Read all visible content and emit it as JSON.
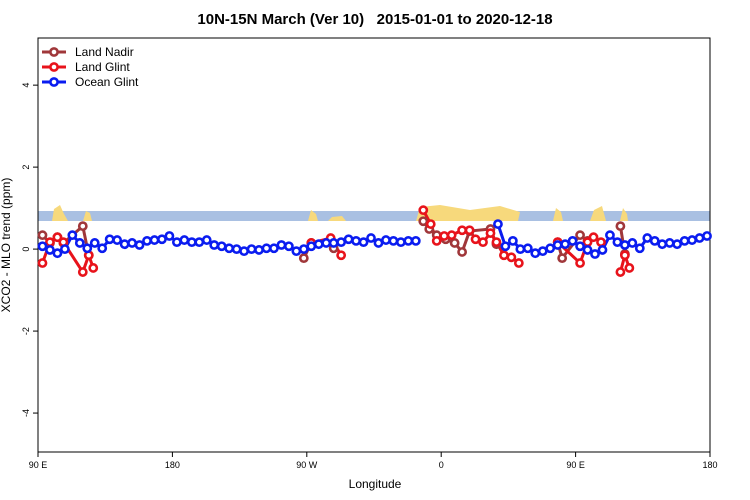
{
  "chart_data": {
    "type": "line",
    "title": "10N-15N March (Ver 10)   2015-01-01 to 2020-12-18",
    "xlabel": "Longitude",
    "ylabel": "XCO2 - MLO trend (ppm)",
    "xlim": [
      90,
      540
    ],
    "ylim": [
      -4.95,
      5.15
    ],
    "xticks": [
      {
        "value": 90,
        "label": "90 E"
      },
      180,
      {
        "value": 270,
        "label": "90 W"
      },
      {
        "value": 360,
        "label": "0"
      },
      {
        "value": 450,
        "label": "90 E"
      },
      {
        "value": 540,
        "label": "180"
      }
    ],
    "yticks": [
      -4,
      -2,
      0,
      2,
      4
    ],
    "legend": "top-left",
    "series": [
      {
        "name": "Land Nadir",
        "color": "#a0373a",
        "x": [
          93,
          98,
          103,
          107,
          120,
          124,
          200,
          268,
          273,
          280,
          288,
          320,
          348,
          352,
          357,
          363,
          369,
          374,
          379,
          393,
          397,
          420,
          438,
          441,
          453,
          458,
          470,
          480,
          483
        ],
        "values": [
          0.34,
          0.15,
          0.29,
          0.15,
          0.56,
          -0.15,
          null,
          -0.22,
          0.15,
          null,
          0.02,
          null,
          0.68,
          0.49,
          0.34,
          0.24,
          0.15,
          -0.07,
          0.44,
          0.49,
          0.12,
          null,
          0.17,
          -0.22,
          0.34,
          0.2,
          null,
          0.56,
          -0.12
        ]
      },
      {
        "name": "Land Glint",
        "color": "#e8131b",
        "x": [
          93,
          98,
          103,
          107,
          120,
          124,
          127,
          200,
          273,
          286,
          293,
          320,
          348,
          353,
          357,
          362,
          367,
          374,
          379,
          383,
          388,
          393,
          397,
          402,
          407,
          412,
          425,
          438,
          453,
          458,
          462,
          467,
          475,
          480,
          483,
          486
        ],
        "values": [
          -0.34,
          0.17,
          0.29,
          0.17,
          -0.56,
          -0.15,
          -0.46,
          null,
          0.15,
          0.27,
          -0.15,
          null,
          0.95,
          0.61,
          0.2,
          0.32,
          0.34,
          0.46,
          0.46,
          0.24,
          0.17,
          0.39,
          0.17,
          -0.15,
          -0.2,
          -0.34,
          null,
          0.17,
          -0.34,
          0.17,
          0.29,
          0.17,
          null,
          -0.56,
          -0.15,
          -0.46
        ]
      },
      {
        "name": "Ocean Glint",
        "color": "#0a1cf0",
        "x": [
          93,
          98,
          103,
          108,
          113,
          118,
          123,
          128,
          133,
          138,
          143,
          148,
          153,
          158,
          163,
          168,
          173,
          178,
          183,
          188,
          193,
          198,
          203,
          208,
          213,
          218,
          223,
          228,
          233,
          238,
          243,
          248,
          253,
          258,
          263,
          268,
          273,
          278,
          283,
          288,
          293,
          298,
          303,
          308,
          313,
          318,
          323,
          328,
          333,
          338,
          343,
          370,
          398,
          403,
          408,
          413,
          418,
          423,
          428,
          433,
          438,
          443,
          448,
          453,
          458,
          463,
          468,
          473,
          478,
          483,
          488,
          493,
          498,
          503,
          508,
          513,
          518,
          523,
          528,
          533,
          538
        ],
        "values": [
          0.07,
          -0.02,
          -0.1,
          0,
          0.34,
          0.15,
          0.02,
          0.15,
          0.02,
          0.24,
          0.22,
          0.12,
          0.15,
          0.1,
          0.2,
          0.22,
          0.24,
          0.32,
          0.17,
          0.22,
          0.17,
          0.17,
          0.22,
          0.1,
          0.07,
          0.02,
          0,
          -0.05,
          0,
          -0.02,
          0.02,
          0.02,
          0.1,
          0.07,
          -0.05,
          0,
          0.07,
          0.12,
          0.15,
          0.15,
          0.17,
          0.24,
          0.2,
          0.17,
          0.27,
          0.15,
          0.22,
          0.2,
          0.17,
          0.2,
          0.2,
          null,
          0.61,
          0.07,
          0.2,
          0,
          0.02,
          -0.1,
          -0.05,
          0.02,
          0.1,
          0.12,
          0.2,
          0.07,
          -0.02,
          -0.12,
          -0.02,
          0.34,
          0.17,
          0.1,
          0.15,
          0.02,
          0.27,
          0.2,
          0.12,
          0.15,
          0.12,
          0.2,
          0.22,
          0.27,
          0.32
        ]
      }
    ]
  }
}
